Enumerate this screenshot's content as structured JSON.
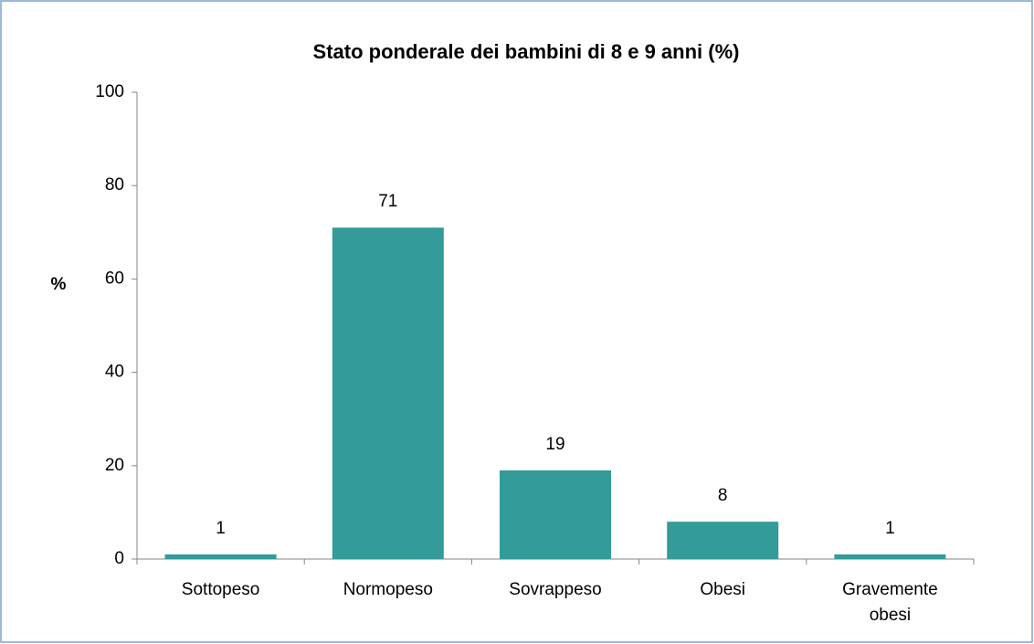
{
  "chart_data": {
    "type": "bar",
    "title": "Stato ponderale dei bambini di 8 e 9 anni (%)",
    "y_label": "%",
    "categories": [
      "Sottopeso",
      "Normopeso",
      "Sovrappeso",
      "Obesi",
      "Gravemente obesi"
    ],
    "values": [
      1,
      71,
      19,
      8,
      1
    ],
    "color": "#339b98",
    "ylim": [
      0,
      100
    ],
    "yticks": [
      0,
      20,
      40,
      60,
      80,
      100
    ],
    "grid": false
  }
}
